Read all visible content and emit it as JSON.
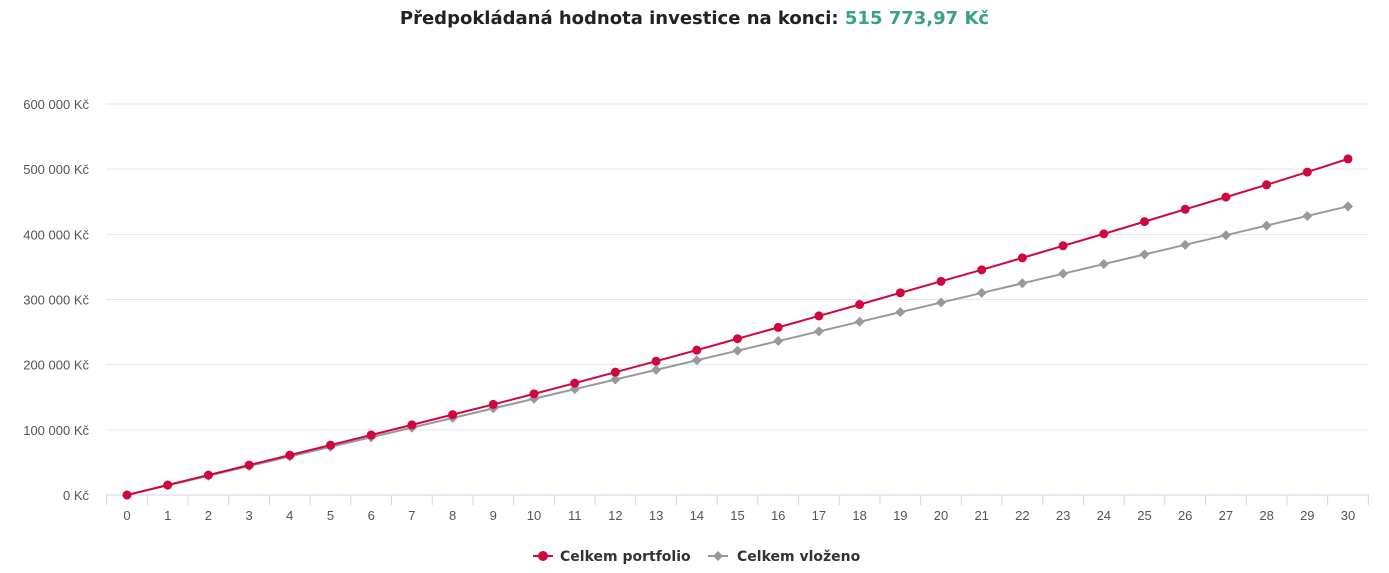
{
  "header": {
    "title_prefix": "Předpokládaná hodnota investice na konci:",
    "title_value": "515 773,97 Kč"
  },
  "colors": {
    "portfolio": "#d0063f",
    "invested": "#999999",
    "accent_value": "#3aa37d",
    "grid": "#e6e6e6",
    "axis": "#ccd6eb"
  },
  "chart_data": {
    "type": "line",
    "x": [
      0,
      1,
      2,
      3,
      4,
      5,
      6,
      7,
      8,
      9,
      10,
      11,
      12,
      13,
      14,
      15,
      16,
      17,
      18,
      19,
      20,
      21,
      22,
      23,
      24,
      25,
      26,
      27,
      28,
      29,
      30
    ],
    "ylim": [
      0,
      600000
    ],
    "yticks": [
      0,
      100000,
      200000,
      300000,
      400000,
      500000,
      600000
    ],
    "ytick_labels": [
      "0 Kč",
      "100 000 Kč",
      "200 000 Kč",
      "300 000 Kč",
      "400 000 Kč",
      "500 000 Kč",
      "600 000 Kč"
    ],
    "grid": true,
    "legend_position": "bottom-center",
    "series": [
      {
        "name": "Celkem portfolio",
        "marker": "circle",
        "values": [
          0,
          15300,
          30500,
          45900,
          61200,
          76600,
          92100,
          107600,
          123300,
          139000,
          155200,
          171600,
          188500,
          205300,
          222300,
          239800,
          257200,
          274800,
          292300,
          310200,
          327900,
          345500,
          363900,
          382400,
          400700,
          419500,
          438400,
          457100,
          476000,
          495500,
          515774
        ]
      },
      {
        "name": "Celkem vloženo",
        "marker": "diamond",
        "values": [
          0,
          14766,
          29532,
          44298,
          59064,
          73830,
          88596,
          103362,
          118128,
          132894,
          147660,
          162426,
          177192,
          191958,
          206724,
          221490,
          236256,
          251022,
          265788,
          280554,
          295320,
          310086,
          324852,
          339618,
          354384,
          369150,
          383916,
          398682,
          413448,
          428214,
          442980
        ]
      }
    ]
  }
}
